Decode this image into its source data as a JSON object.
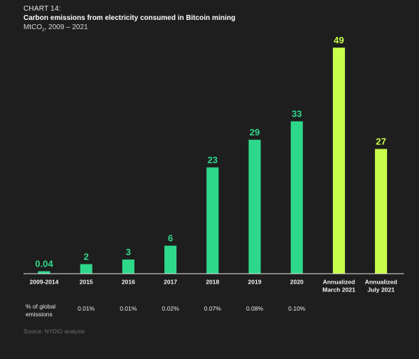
{
  "header": {
    "chart_number": "CHART 14:",
    "title": "Carbon emissions from electricity consumed in Bitcoin mining",
    "subtitle_prefix": "MtCO",
    "subtitle_subscript": "2",
    "subtitle_suffix": ", 2009 – 2021"
  },
  "chart_data": {
    "type": "bar",
    "title": "Carbon emissions from electricity consumed in Bitcoin mining",
    "ylabel": "MtCO2, 2009 – 2021",
    "xlabel": "",
    "ylim": [
      0,
      49
    ],
    "grid": false,
    "legend": "none",
    "categories": [
      "2009-2014",
      "2015",
      "2016",
      "2017",
      "2018",
      "2019",
      "2020",
      "Annualized March 2021",
      "Annualized July 2021"
    ],
    "category_label_lines": [
      [
        "2009-2014"
      ],
      [
        "2015"
      ],
      [
        "2016"
      ],
      [
        "2017"
      ],
      [
        "2018"
      ],
      [
        "2019"
      ],
      [
        "2020"
      ],
      [
        "Annualized",
        "March 2021"
      ],
      [
        "Annualized",
        "July 2021"
      ]
    ],
    "values": [
      0.04,
      2,
      3,
      6,
      23,
      29,
      33,
      49,
      27
    ],
    "value_labels": [
      "0.04",
      "2",
      "3",
      "6",
      "23",
      "29",
      "33",
      "49",
      "27"
    ],
    "bar_kinds": [
      "actual",
      "actual",
      "actual",
      "actual",
      "actual",
      "actual",
      "actual",
      "annualized",
      "annualized"
    ],
    "colors": {
      "actual": "#2ed88a",
      "annualized": "#c8ff4a",
      "axis": "#e6e6e6",
      "background": "#1e1e1e"
    },
    "share_of_global_emissions": {
      "label_lines": [
        "% of global",
        "emissions"
      ],
      "values": [
        "",
        "0.01%",
        "0.01%",
        "0.02%",
        "0.07%",
        "0.08%",
        "0.10%",
        "",
        ""
      ]
    }
  },
  "source": "Source: NYDIG analysis"
}
